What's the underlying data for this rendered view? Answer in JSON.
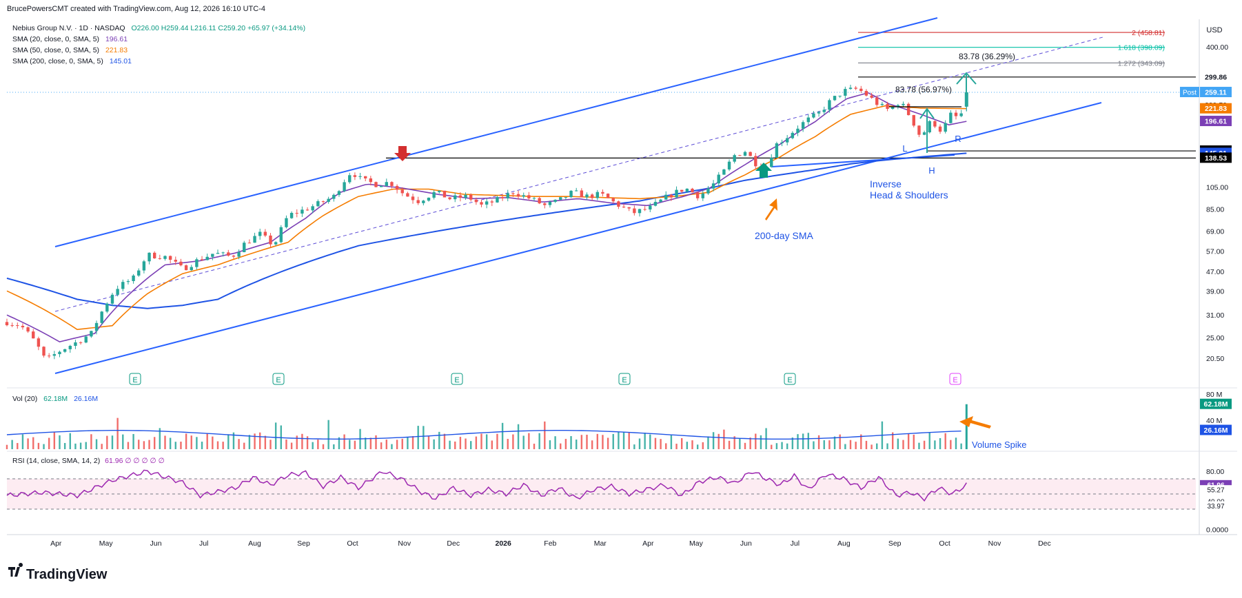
{
  "header": {
    "credit": "BrucePowersCMT created with TradingView.com, Aug 12, 2026 16:10 UTC-4",
    "symbol_line": "Nebius Group N.V. · 1D · NASDAQ",
    "ohlc": "O226.00  H259.44  L216.11  C259.20  +65.97 (+34.14%)",
    "sma20_label": "SMA (20, close, 0, SMA, 5)",
    "sma20_value": "196.61",
    "sma50_label": "SMA (50, close, 0, SMA, 5)",
    "sma50_value": "221.83",
    "sma200_label": "SMA (200, close, 0, SMA, 5)",
    "sma200_value": "145.01",
    "currency": "USD"
  },
  "footer": {
    "brand": "TradingView"
  },
  "colors": {
    "up": "#26a69a",
    "down": "#ef5350",
    "sma20": "#7b3fb5",
    "sma50": "#f57c00",
    "sma200": "#1e53e5",
    "channel": "#2962ff",
    "rsi": "#9c27b0",
    "annotation": "#1e53e5"
  },
  "chart_data": {
    "type": "candlestick",
    "ticker": "NBIS",
    "yscale": "log",
    "ylim": [
      18,
      520
    ],
    "y_ticks": [
      "400.00",
      "200.00",
      "105.00",
      "85.00",
      "69.00",
      "57.00",
      "47.00",
      "39.00",
      "31.00",
      "25.00",
      "20.50"
    ],
    "x_ticks": [
      "Apr",
      "May",
      "Jun",
      "Jul",
      "Aug",
      "Sep",
      "Oct",
      "Nov",
      "Dec",
      "2026",
      "Feb",
      "Mar",
      "Apr",
      "May",
      "Jun",
      "Jul",
      "Aug",
      "Sep",
      "Oct",
      "Nov",
      "Dec"
    ],
    "price_path": [
      [
        0,
        29
      ],
      [
        8,
        28
      ],
      [
        16,
        24
      ],
      [
        22,
        20
      ],
      [
        30,
        22
      ],
      [
        40,
        24
      ],
      [
        48,
        26
      ],
      [
        56,
        34
      ],
      [
        62,
        40
      ],
      [
        72,
        44
      ],
      [
        80,
        55
      ],
      [
        90,
        54
      ],
      [
        100,
        48
      ],
      [
        108,
        52
      ],
      [
        118,
        56
      ],
      [
        128,
        54
      ],
      [
        136,
        62
      ],
      [
        144,
        67
      ],
      [
        152,
        60
      ],
      [
        160,
        80
      ],
      [
        170,
        85
      ],
      [
        178,
        90
      ],
      [
        186,
        96
      ],
      [
        192,
        112
      ],
      [
        196,
        122
      ],
      [
        202,
        112
      ],
      [
        210,
        108
      ],
      [
        218,
        110
      ],
      [
        226,
        98
      ],
      [
        234,
        92
      ],
      [
        244,
        100
      ],
      [
        252,
        94
      ],
      [
        262,
        96
      ],
      [
        270,
        88
      ],
      [
        278,
        92
      ],
      [
        288,
        100
      ],
      [
        298,
        94
      ],
      [
        306,
        88
      ],
      [
        314,
        92
      ],
      [
        322,
        100
      ],
      [
        330,
        96
      ],
      [
        338,
        98
      ],
      [
        346,
        90
      ],
      [
        356,
        82
      ],
      [
        366,
        86
      ],
      [
        376,
        96
      ],
      [
        386,
        104
      ],
      [
        394,
        96
      ],
      [
        402,
        108
      ],
      [
        408,
        122
      ],
      [
        414,
        142
      ],
      [
        420,
        148
      ],
      [
        426,
        132
      ],
      [
        432,
        128
      ],
      [
        438,
        158
      ],
      [
        444,
        170
      ],
      [
        450,
        186
      ],
      [
        456,
        200
      ],
      [
        462,
        212
      ],
      [
        468,
        236
      ],
      [
        476,
        262
      ],
      [
        484,
        268
      ],
      [
        490,
        250
      ],
      [
        496,
        230
      ],
      [
        502,
        218
      ],
      [
        508,
        238
      ],
      [
        514,
        205
      ],
      [
        520,
        168
      ],
      [
        526,
        198
      ],
      [
        532,
        178
      ],
      [
        538,
        215
      ],
      [
        542,
        195
      ],
      [
        546,
        259
      ]
    ],
    "sma20_path": [
      [
        0,
        31
      ],
      [
        30,
        24
      ],
      [
        50,
        26
      ],
      [
        70,
        38
      ],
      [
        90,
        50
      ],
      [
        110,
        52
      ],
      [
        130,
        56
      ],
      [
        150,
        62
      ],
      [
        170,
        78
      ],
      [
        190,
        100
      ],
      [
        205,
        108
      ],
      [
        225,
        104
      ],
      [
        245,
        98
      ],
      [
        265,
        94
      ],
      [
        285,
        95
      ],
      [
        305,
        91
      ],
      [
        325,
        94
      ],
      [
        345,
        90
      ],
      [
        365,
        88
      ],
      [
        385,
        96
      ],
      [
        400,
        104
      ],
      [
        420,
        130
      ],
      [
        440,
        158
      ],
      [
        460,
        196
      ],
      [
        478,
        244
      ],
      [
        490,
        258
      ],
      [
        502,
        232
      ],
      [
        520,
        210
      ],
      [
        536,
        190
      ],
      [
        546,
        196.61
      ]
    ],
    "sma50_path": [
      [
        0,
        39
      ],
      [
        20,
        33
      ],
      [
        40,
        27
      ],
      [
        60,
        28
      ],
      [
        80,
        38
      ],
      [
        100,
        46
      ],
      [
        120,
        50
      ],
      [
        140,
        56
      ],
      [
        160,
        62
      ],
      [
        180,
        80
      ],
      [
        200,
        96
      ],
      [
        220,
        103
      ],
      [
        240,
        103
      ],
      [
        260,
        98
      ],
      [
        280,
        97
      ],
      [
        300,
        96
      ],
      [
        320,
        96
      ],
      [
        340,
        95
      ],
      [
        360,
        94
      ],
      [
        380,
        96
      ],
      [
        400,
        100
      ],
      [
        420,
        118
      ],
      [
        440,
        140
      ],
      [
        460,
        170
      ],
      [
        480,
        210
      ],
      [
        500,
        228
      ],
      [
        520,
        223
      ],
      [
        546,
        221.83
      ]
    ],
    "sma200_path": [
      [
        0,
        44
      ],
      [
        20,
        40
      ],
      [
        40,
        36
      ],
      [
        60,
        34
      ],
      [
        80,
        33
      ],
      [
        100,
        34
      ],
      [
        120,
        36
      ],
      [
        140,
        42
      ],
      [
        160,
        48
      ],
      [
        180,
        54
      ],
      [
        200,
        60
      ],
      [
        220,
        64
      ],
      [
        240,
        68
      ],
      [
        260,
        72
      ],
      [
        280,
        76
      ],
      [
        300,
        80
      ],
      [
        320,
        84
      ],
      [
        340,
        88
      ],
      [
        360,
        92
      ],
      [
        380,
        98
      ],
      [
        400,
        104
      ],
      [
        420,
        112
      ],
      [
        440,
        118
      ],
      [
        460,
        124
      ],
      [
        480,
        131
      ],
      [
        500,
        136
      ],
      [
        520,
        140
      ],
      [
        546,
        145.01
      ]
    ],
    "volume_ylim": [
      0,
      80
    ],
    "volume_ticks": [
      "80 M",
      "40 M"
    ],
    "volume_legend": [
      "Vol (20)",
      "62.18M",
      "26.16M"
    ],
    "volume_last": 62.18,
    "volume_ma_last": 26.16,
    "rsi_legend": "RSI (14, close, SMA, 14, 2)",
    "rsi_legend_tail": "61.96  ∅  ∅  ∅  ∅  ∅",
    "rsi_ticks": [
      "80.00",
      "0.0000"
    ],
    "rsi_path": [
      [
        0,
        48
      ],
      [
        20,
        52
      ],
      [
        40,
        48
      ],
      [
        60,
        68
      ],
      [
        80,
        80
      ],
      [
        100,
        65
      ],
      [
        110,
        48
      ],
      [
        130,
        58
      ],
      [
        140,
        72
      ],
      [
        150,
        62
      ],
      [
        160,
        75
      ],
      [
        170,
        78
      ],
      [
        180,
        60
      ],
      [
        190,
        72
      ],
      [
        200,
        58
      ],
      [
        214,
        80
      ],
      [
        226,
        68
      ],
      [
        236,
        52
      ],
      [
        244,
        44
      ],
      [
        254,
        58
      ],
      [
        264,
        48
      ],
      [
        274,
        56
      ],
      [
        284,
        50
      ],
      [
        294,
        62
      ],
      [
        304,
        48
      ],
      [
        314,
        58
      ],
      [
        324,
        44
      ],
      [
        334,
        56
      ],
      [
        344,
        60
      ],
      [
        354,
        50
      ],
      [
        364,
        56
      ],
      [
        374,
        62
      ],
      [
        384,
        48
      ],
      [
        394,
        66
      ],
      [
        404,
        72
      ],
      [
        414,
        64
      ],
      [
        424,
        80
      ],
      [
        432,
        70
      ],
      [
        440,
        62
      ],
      [
        448,
        74
      ],
      [
        456,
        56
      ],
      [
        466,
        76
      ],
      [
        476,
        70
      ],
      [
        486,
        58
      ],
      [
        496,
        72
      ],
      [
        506,
        48
      ],
      [
        514,
        52
      ],
      [
        522,
        44
      ],
      [
        530,
        58
      ],
      [
        538,
        50
      ],
      [
        546,
        61.96
      ]
    ],
    "rsi_levels": [
      70,
      50,
      30
    ],
    "price_labels": [
      {
        "text": "2 (458.81)",
        "value": 458.81,
        "color": "#d32f2f"
      },
      {
        "text": "1.618 (398.09)",
        "value": 398.09,
        "color": "#00bfa5"
      },
      {
        "text": "1.272 (343.09)",
        "value": 343.09,
        "color": "#787b86"
      }
    ],
    "axis_badges": [
      {
        "text": "299.86",
        "value": 299.86,
        "bg": "#ffffff",
        "fg": "#131722"
      },
      {
        "text": "259.11",
        "value": 259.11,
        "bg": "#42a5f5",
        "fg": "#ffffff",
        "tag": "Post"
      },
      {
        "text": "232.35",
        "value": 232.35,
        "bg": "#ffffff",
        "fg": "#131722"
      },
      {
        "text": "229.50",
        "value": 229.5,
        "bg": "#ffffff",
        "fg": "#131722"
      },
      {
        "text": "221.83",
        "value": 221.83,
        "bg": "#f57c00",
        "fg": "#ffffff"
      },
      {
        "text": "196.61",
        "value": 196.61,
        "bg": "#7b3fb5",
        "fg": "#ffffff"
      },
      {
        "text": "148.22",
        "value": 148.22,
        "bg": "#000000",
        "fg": "#ffffff"
      },
      {
        "text": "145.01",
        "value": 145.01,
        "bg": "#1e53e5",
        "fg": "#ffffff"
      },
      {
        "text": "138.53",
        "value": 138.53,
        "bg": "#000000",
        "fg": "#ffffff"
      }
    ],
    "measurements": [
      {
        "text": "83.78 (36.29%)"
      },
      {
        "text": "83.78 (56.97%)"
      }
    ],
    "annotations": {
      "pattern_left": "L",
      "pattern_head": "H",
      "pattern_right": "R",
      "pattern_name_1": "Inverse",
      "pattern_name_2": "Head & Shoulders",
      "sma200_note": "200-day SMA",
      "volume_note": "Volume Spike",
      "earnings_marker": "E",
      "rsi_badges": [
        "61.96",
        "55.27",
        "40.00",
        "33.97"
      ]
    }
  }
}
